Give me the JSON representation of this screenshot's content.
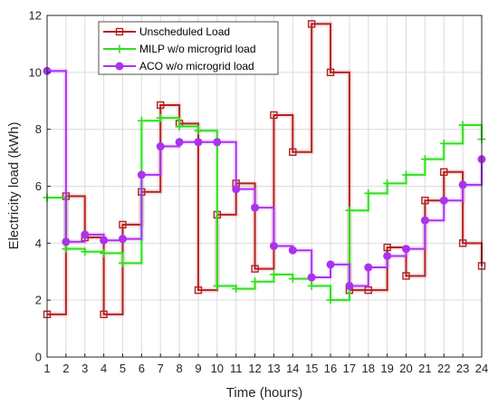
{
  "chart_data": {
    "type": "line",
    "step": "post",
    "xlabel": "Time (hours)",
    "ylabel": "Electricity load (kWh)",
    "xlim": [
      1,
      24
    ],
    "ylim": [
      0,
      12
    ],
    "xticks": [
      1,
      2,
      3,
      4,
      5,
      6,
      7,
      8,
      9,
      10,
      11,
      12,
      13,
      14,
      15,
      16,
      17,
      18,
      19,
      20,
      21,
      22,
      23,
      24
    ],
    "yticks": [
      0,
      2,
      4,
      6,
      8,
      10,
      12
    ],
    "grid": true,
    "legend_position": "top-left",
    "x": [
      1,
      2,
      3,
      4,
      5,
      6,
      7,
      8,
      9,
      10,
      11,
      12,
      13,
      14,
      15,
      16,
      17,
      18,
      19,
      20,
      21,
      22,
      23,
      24
    ],
    "series": [
      {
        "name": "Unscheduled Load",
        "color": "#b22222",
        "marker": "square",
        "values": [
          1.5,
          5.65,
          4.2,
          1.5,
          4.65,
          5.8,
          8.85,
          8.2,
          2.35,
          5.0,
          6.1,
          3.1,
          8.5,
          7.2,
          11.7,
          10.0,
          2.35,
          2.35,
          3.85,
          2.85,
          5.5,
          6.5,
          4.0,
          3.2
        ]
      },
      {
        "name": "MILP w/o microgrid load",
        "color": "#33dd22",
        "marker": "plus",
        "values": [
          5.6,
          3.8,
          3.7,
          3.65,
          3.3,
          8.3,
          8.4,
          8.1,
          7.95,
          2.5,
          2.4,
          2.65,
          2.9,
          2.75,
          2.5,
          2.0,
          5.15,
          5.75,
          6.1,
          6.4,
          6.95,
          7.5,
          8.15,
          7.65
        ]
      },
      {
        "name": "ACO w/o microgrid load",
        "color": "#aa33ee",
        "marker": "circle",
        "values": [
          10.05,
          4.05,
          4.3,
          4.1,
          4.15,
          6.4,
          7.4,
          7.55,
          7.55,
          7.55,
          5.9,
          5.25,
          3.9,
          3.75,
          2.8,
          3.25,
          2.5,
          3.15,
          3.55,
          3.8,
          4.8,
          5.5,
          6.05,
          6.95
        ]
      }
    ]
  }
}
